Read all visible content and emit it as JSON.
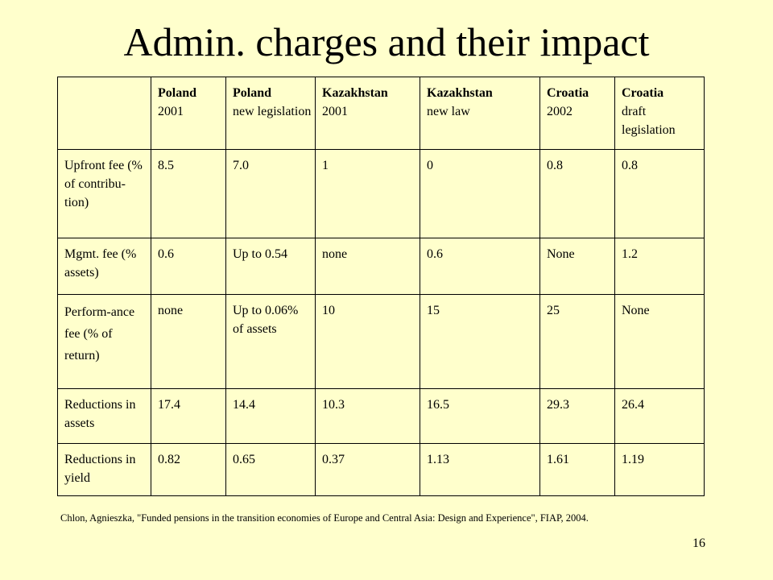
{
  "slide": {
    "title": "Admin. charges and their impact",
    "citation": "Chlon, Agnieszka, \"Funded pensions in the transition economies of Europe and Central Asia: Design and Experience\", FIAP, 2004.",
    "page_number": "16"
  },
  "table": {
    "headers": [
      {
        "strong": "Poland",
        "rest": "2001"
      },
      {
        "strong": "Poland",
        "rest": "new legislation"
      },
      {
        "strong": "Kazakhstan",
        "rest": "2001"
      },
      {
        "strong": "Kazakhstan",
        "rest": "new law"
      },
      {
        "strong": "Croatia",
        "rest": "2002"
      },
      {
        "strong": "Croatia",
        "rest": "draft legislation"
      }
    ],
    "rows": [
      {
        "label": "Upfront fee (% of contribu-tion)",
        "cells": [
          "8.5",
          "7.0",
          "1",
          "0",
          "0.8",
          "0.8"
        ]
      },
      {
        "label": "Mgmt. fee (% assets)",
        "cells": [
          "0.6",
          "Up to 0.54",
          "none",
          "0.6",
          "None",
          "1.2"
        ]
      },
      {
        "label": "Perform-ance fee (% of return)",
        "cells": [
          "none",
          "Up to 0.06% of assets",
          "10",
          "15",
          "25",
          "None"
        ]
      },
      {
        "label": "Reductions in assets",
        "cells": [
          "17.4",
          "14.4",
          "10.3",
          "16.5",
          "29.3",
          "26.4"
        ]
      },
      {
        "label": "Reductions in yield",
        "cells": [
          "0.82",
          "0.65",
          "0.37",
          "1.13",
          "1.61",
          "1.19"
        ]
      }
    ]
  }
}
